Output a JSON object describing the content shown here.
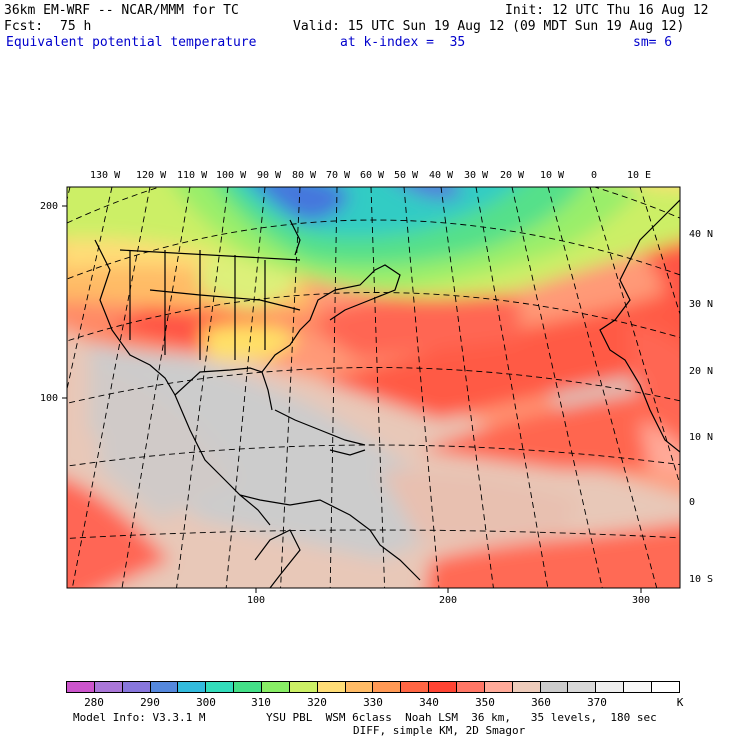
{
  "header": {
    "model": "36km EM-WRF -- NCAR/MMM for TC",
    "init": "Init: 12 UTC Thu 16 Aug 12",
    "fcst_label": "Fcst:",
    "fcst_value": "75 h",
    "valid": "Valid: 15 UTC Sun 19 Aug 12 (09 MDT Sun 19 Aug 12)",
    "field": "Equivalent potential temperature",
    "level": "at k-index =  35",
    "smoothing": "sm= 6"
  },
  "map": {
    "lon_labels": [
      "130 W",
      "120 W",
      "110 W",
      "100 W",
      "90 W",
      "80 W",
      "70 W",
      "60 W",
      "50 W",
      "40 W",
      "30 W",
      "20 W",
      "10 W",
      "0",
      "10 E"
    ],
    "lat_labels": [
      "40 N",
      "30 N",
      "20 N",
      "10 N",
      "0",
      "10 S"
    ],
    "grid_y_labels": [
      "200",
      "100"
    ],
    "grid_x_labels": [
      "100",
      "200",
      "300"
    ],
    "colors": {
      "coast": "#000000",
      "grid": "#000000"
    }
  },
  "colorbar": {
    "colors": [
      "#cc55cc",
      "#aa77d8",
      "#8877dd",
      "#5588dd",
      "#33bbdd",
      "#33ddbb",
      "#44e088",
      "#88ee66",
      "#ccf066",
      "#ffdd77",
      "#ffbb66",
      "#ff9955",
      "#ff6644",
      "#ff4433",
      "#ff7766",
      "#ffaa99",
      "#eeccbb",
      "#cccccc",
      "#d8d8d8",
      "#eeeeee",
      "#f8f8f8",
      "#ffffff"
    ],
    "labels": [
      "280",
      "290",
      "300",
      "310",
      "320",
      "330",
      "340",
      "350",
      "360",
      "370"
    ],
    "unit": "K"
  },
  "footer": {
    "line1_left": "Model Info: V3.3.1 M",
    "line1_right": "YSU PBL  WSM 6class  Noah LSM  36 km,   35 levels,  180 sec",
    "line2": "DIFF, simple KM, 2D Smagor"
  }
}
